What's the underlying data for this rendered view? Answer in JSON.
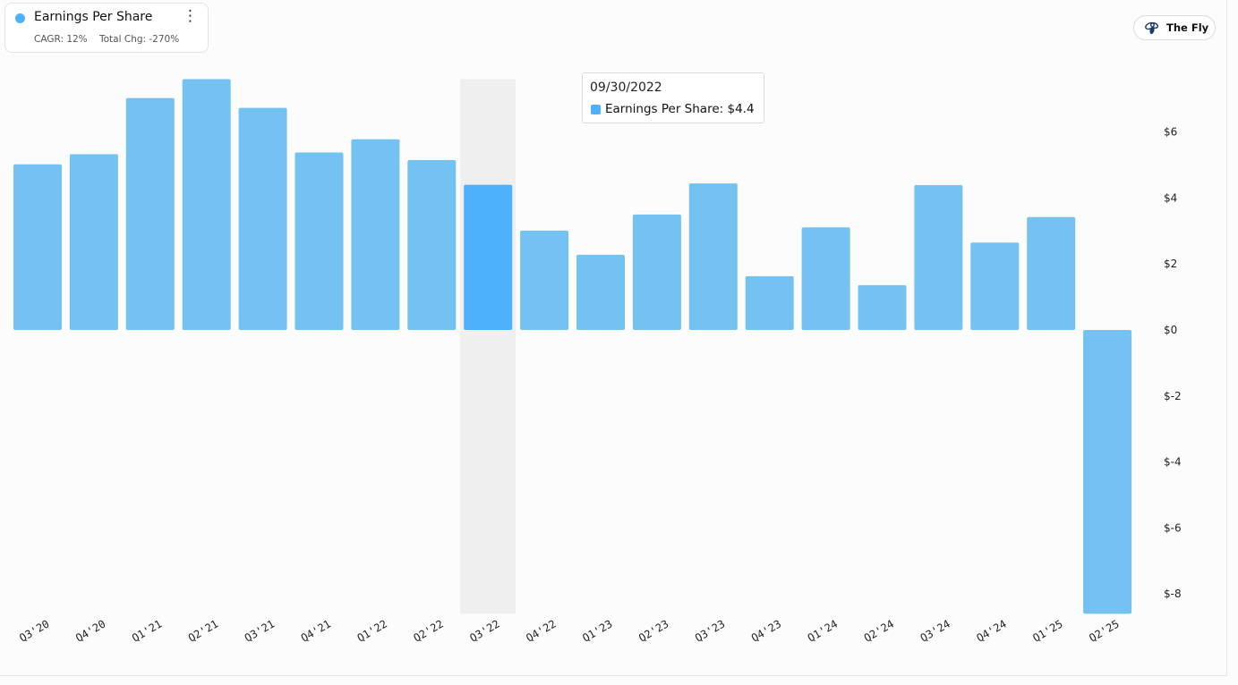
{
  "legend": {
    "title": "Earnings Per Share",
    "cagr": "CAGR: 12%",
    "total_change": "Total Chg: -270%",
    "menu_icon": "more-vertical-icon",
    "dot_color": "#4db1fc"
  },
  "brand": {
    "name": "The Fly",
    "icon": "fly-logo-icon"
  },
  "tooltip": {
    "date": "09/30/2022",
    "series_label": "Earnings Per Share:",
    "value": "$4.4",
    "swatch_color": "#4db1fc"
  },
  "colors": {
    "bar": "#74c2f1",
    "bar_highlight": "#4db1fc",
    "highlight_band": "#efefef",
    "tick_text": "#222222"
  },
  "chart_data": {
    "type": "bar",
    "categories": [
      "Q3'20",
      "Q4'20",
      "Q1'21",
      "Q2'21",
      "Q3'21",
      "Q4'21",
      "Q1'22",
      "Q2'22",
      "Q3'22",
      "Q4'22",
      "Q1'23",
      "Q2'23",
      "Q3'23",
      "Q4'23",
      "Q1'24",
      "Q2'24",
      "Q3'24",
      "Q4'24",
      "Q1'25",
      "Q2'25"
    ],
    "values": [
      5.02,
      5.33,
      7.03,
      7.6,
      6.73,
      5.38,
      5.78,
      5.15,
      4.4,
      3.01,
      2.28,
      3.5,
      4.44,
      1.63,
      3.11,
      1.36,
      4.39,
      2.65,
      3.42,
      -8.6
    ],
    "highlighted_index": 8,
    "y_ticks": [
      6,
      4,
      2,
      0,
      -2,
      -4,
      -6,
      -8
    ],
    "y_tick_labels": [
      "$6",
      "$4",
      "$2",
      "$0",
      "$-2",
      "$-4",
      "$-6",
      "$-8"
    ],
    "ylim": [
      -8.6,
      7.6
    ],
    "y_axis_position": "right",
    "grid": false,
    "title": "",
    "xlabel": "",
    "ylabel": ""
  }
}
